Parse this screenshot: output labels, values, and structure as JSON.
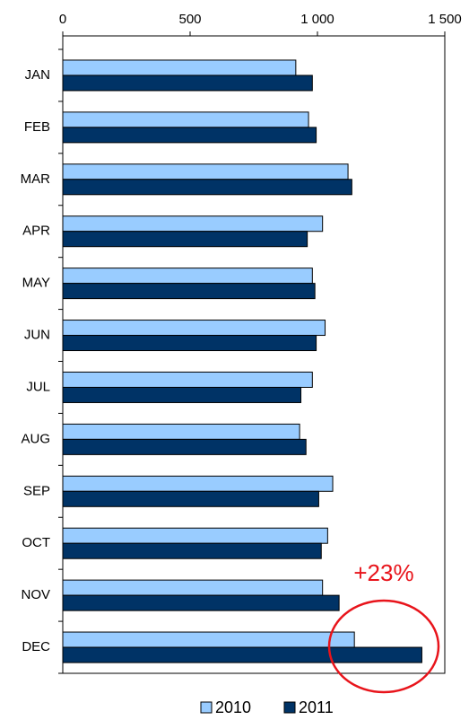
{
  "chart_data": {
    "type": "bar",
    "orientation": "horizontal",
    "categories": [
      "JAN",
      "FEB",
      "MAR",
      "APR",
      "MAY",
      "JUN",
      "JUL",
      "AUG",
      "SEP",
      "OCT",
      "NOV",
      "DEC"
    ],
    "series": [
      {
        "name": "2010",
        "color": "#99ccff",
        "values": [
          915,
          965,
          1120,
          1020,
          980,
          1030,
          980,
          930,
          1060,
          1040,
          1020,
          1145
        ]
      },
      {
        "name": "2011",
        "color": "#003366",
        "values": [
          980,
          995,
          1135,
          960,
          990,
          995,
          935,
          955,
          1005,
          1015,
          1085,
          1410
        ]
      }
    ],
    "xlim": [
      0,
      1500
    ],
    "xticks": [
      0,
      500,
      {
        "value": 1000,
        "label": "1 000"
      },
      {
        "value": 1500,
        "label": "1 500"
      }
    ],
    "annotation": "+23%",
    "legend": "bottom"
  }
}
